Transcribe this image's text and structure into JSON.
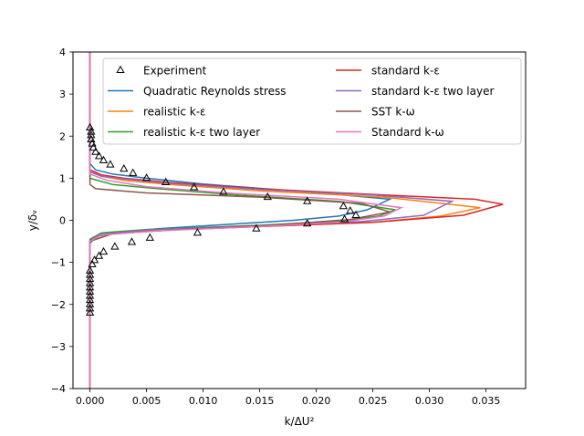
{
  "chart_data": {
    "type": "line",
    "title": "",
    "xlabel": "k/ΔU²",
    "ylabel": "y/δᵥ",
    "xlim": [
      -0.0015,
      0.0385
    ],
    "ylim": [
      -4,
      4
    ],
    "xticks": [
      0.0,
      0.005,
      0.01,
      0.015,
      0.02,
      0.025,
      0.03,
      0.035
    ],
    "xtick_labels": [
      "0.000",
      "0.005",
      "0.010",
      "0.015",
      "0.020",
      "0.025",
      "0.030",
      "0.035"
    ],
    "yticks": [
      -4,
      -3,
      -2,
      -1,
      0,
      1,
      2,
      3,
      4
    ],
    "ytick_labels": [
      "−4",
      "−3",
      "−2",
      "−1",
      "0",
      "1",
      "2",
      "3",
      "4"
    ],
    "legend_position": "top-center",
    "grid": false,
    "experiment": {
      "name": "Experiment",
      "marker": "triangle",
      "points": [
        [
          0.0,
          -2.2
        ],
        [
          0.0,
          -2.1
        ],
        [
          0.0,
          -2.0
        ],
        [
          0.0,
          -1.9
        ],
        [
          0.0,
          -1.8
        ],
        [
          0.0,
          -1.7
        ],
        [
          0.0,
          -1.6
        ],
        [
          0.0,
          -1.5
        ],
        [
          0.0,
          -1.4
        ],
        [
          0.0,
          -1.3
        ],
        [
          0.0,
          -1.2
        ],
        [
          0.0002,
          -1.05
        ],
        [
          0.0004,
          -0.95
        ],
        [
          0.0008,
          -0.85
        ],
        [
          0.0012,
          -0.75
        ],
        [
          0.0022,
          -0.63
        ],
        [
          0.0037,
          -0.52
        ],
        [
          0.0053,
          -0.42
        ],
        [
          0.0095,
          -0.3
        ],
        [
          0.0147,
          -0.2
        ],
        [
          0.0192,
          -0.08
        ],
        [
          0.0225,
          0.02
        ],
        [
          0.0235,
          0.12
        ],
        [
          0.023,
          0.22
        ],
        [
          0.0224,
          0.33
        ],
        [
          0.0192,
          0.45
        ],
        [
          0.0157,
          0.55
        ],
        [
          0.0118,
          0.67
        ],
        [
          0.0092,
          0.78
        ],
        [
          0.0067,
          0.9
        ],
        [
          0.005,
          1.0
        ],
        [
          0.0038,
          1.12
        ],
        [
          0.003,
          1.22
        ],
        [
          0.0018,
          1.32
        ],
        [
          0.0012,
          1.42
        ],
        [
          0.0008,
          1.52
        ],
        [
          0.0005,
          1.62
        ],
        [
          0.0003,
          1.72
        ],
        [
          0.0002,
          1.82
        ],
        [
          0.0001,
          1.92
        ],
        [
          0.0001,
          2.02
        ],
        [
          0.0001,
          2.1
        ],
        [
          0.0,
          2.2
        ]
      ]
    },
    "series": [
      {
        "name": "Quadratic Reynolds stress",
        "color": "#1f77b4",
        "points": [
          [
            0.0,
            -4.0
          ],
          [
            0.0,
            -0.55
          ],
          [
            0.0005,
            -0.4
          ],
          [
            0.002,
            -0.3
          ],
          [
            0.006,
            -0.2
          ],
          [
            0.012,
            -0.1
          ],
          [
            0.018,
            0.0
          ],
          [
            0.022,
            0.1
          ],
          [
            0.0245,
            0.25
          ],
          [
            0.0265,
            0.5
          ],
          [
            0.02,
            0.66
          ],
          [
            0.01,
            0.86
          ],
          [
            0.005,
            1.0
          ],
          [
            0.002,
            1.1
          ],
          [
            0.0005,
            1.2
          ],
          [
            0.0,
            1.35
          ],
          [
            0.0,
            4.0
          ]
        ]
      },
      {
        "name": "realistic k-ε",
        "color": "#ff7f0e",
        "points": [
          [
            0.0,
            -4.0
          ],
          [
            0.0,
            -0.5
          ],
          [
            0.001,
            -0.35
          ],
          [
            0.005,
            -0.25
          ],
          [
            0.015,
            -0.15
          ],
          [
            0.025,
            -0.05
          ],
          [
            0.031,
            0.1
          ],
          [
            0.0345,
            0.3
          ],
          [
            0.026,
            0.55
          ],
          [
            0.015,
            0.7
          ],
          [
            0.007,
            0.85
          ],
          [
            0.003,
            0.95
          ],
          [
            0.001,
            1.05
          ],
          [
            0.0,
            1.2
          ],
          [
            0.0,
            4.0
          ]
        ]
      },
      {
        "name": "realistic k-ε two layer",
        "color": "#2ca02c",
        "points": [
          [
            0.0,
            -4.0
          ],
          [
            0.0,
            -0.45
          ],
          [
            0.001,
            -0.3
          ],
          [
            0.005,
            -0.22
          ],
          [
            0.015,
            -0.12
          ],
          [
            0.022,
            -0.02
          ],
          [
            0.0255,
            0.1
          ],
          [
            0.027,
            0.25
          ],
          [
            0.022,
            0.45
          ],
          [
            0.013,
            0.6
          ],
          [
            0.006,
            0.75
          ],
          [
            0.002,
            0.85
          ],
          [
            0.0,
            1.0
          ],
          [
            0.0,
            4.0
          ]
        ]
      },
      {
        "name": "standard k-ε",
        "color": "#d62728",
        "points": [
          [
            0.0,
            -4.0
          ],
          [
            0.0,
            -0.5
          ],
          [
            0.001,
            -0.35
          ],
          [
            0.005,
            -0.25
          ],
          [
            0.015,
            -0.15
          ],
          [
            0.025,
            -0.05
          ],
          [
            0.033,
            0.12
          ],
          [
            0.0365,
            0.38
          ],
          [
            0.034,
            0.5
          ],
          [
            0.026,
            0.6
          ],
          [
            0.015,
            0.75
          ],
          [
            0.007,
            0.9
          ],
          [
            0.003,
            1.0
          ],
          [
            0.001,
            1.08
          ],
          [
            0.0,
            1.2
          ],
          [
            0.0,
            4.0
          ]
        ]
      },
      {
        "name": "standard k-ε two layer",
        "color": "#9467bd",
        "points": [
          [
            0.0,
            -4.0
          ],
          [
            0.0,
            -0.48
          ],
          [
            0.001,
            -0.33
          ],
          [
            0.005,
            -0.23
          ],
          [
            0.015,
            -0.13
          ],
          [
            0.024,
            -0.03
          ],
          [
            0.0295,
            0.12
          ],
          [
            0.032,
            0.45
          ],
          [
            0.025,
            0.6
          ],
          [
            0.015,
            0.73
          ],
          [
            0.007,
            0.88
          ],
          [
            0.003,
            0.98
          ],
          [
            0.001,
            1.05
          ],
          [
            0.0,
            1.15
          ],
          [
            0.0,
            4.0
          ]
        ]
      },
      {
        "name": "SST k-ω",
        "color": "#8c564b",
        "points": [
          [
            0.0,
            -4.0
          ],
          [
            0.0,
            -0.5
          ],
          [
            0.002,
            -0.32
          ],
          [
            0.008,
            -0.22
          ],
          [
            0.016,
            -0.12
          ],
          [
            0.023,
            0.02
          ],
          [
            0.0265,
            0.2
          ],
          [
            0.024,
            0.4
          ],
          [
            0.015,
            0.55
          ],
          [
            0.005,
            0.65
          ],
          [
            0.0005,
            0.75
          ],
          [
            0.0,
            0.85
          ],
          [
            0.0,
            4.0
          ]
        ]
      },
      {
        "name": "Standard k-ω",
        "color": "#e377c2",
        "points": [
          [
            0.0,
            -4.0
          ],
          [
            0.0,
            -0.5
          ],
          [
            0.001,
            -0.35
          ],
          [
            0.006,
            -0.25
          ],
          [
            0.015,
            -0.15
          ],
          [
            0.022,
            -0.05
          ],
          [
            0.026,
            0.1
          ],
          [
            0.0275,
            0.3
          ],
          [
            0.022,
            0.5
          ],
          [
            0.012,
            0.65
          ],
          [
            0.005,
            0.8
          ],
          [
            0.0015,
            0.95
          ],
          [
            0.0,
            1.1
          ],
          [
            0.0,
            4.0
          ]
        ]
      }
    ]
  }
}
